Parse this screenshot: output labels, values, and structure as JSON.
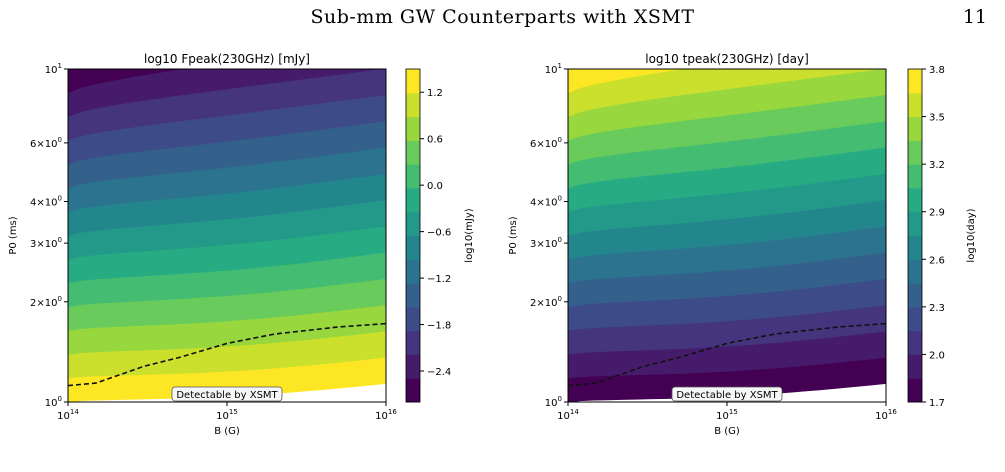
{
  "header": {
    "title": "Sub-mm GW Counterparts with XSMT",
    "page_number": "11"
  },
  "chart_data": [
    {
      "type": "heatmap",
      "title": "log10 Fpeak(230GHz) [mJy]",
      "xlabel": "B (G)",
      "ylabel": "P0 (ms)",
      "x_scale": "log",
      "y_scale": "log",
      "xlim": [
        100000000000000.0,
        1e+16
      ],
      "ylim": [
        1,
        10
      ],
      "x_ticks": [
        "10^14",
        "10^15",
        "10^16"
      ],
      "y_ticks": [
        "10^0",
        "2×10^0",
        "3×10^0",
        "4×10^0",
        "6×10^0",
        "10^1"
      ],
      "colorbar_label": "log10(mJy)",
      "colorbar_ticks": [
        "1.2",
        "0.6",
        "0.0",
        "−0.6",
        "−1.2",
        "−1.8",
        "−2.4"
      ],
      "colorbar_tick_values": [
        1.2,
        0.6,
        0.0,
        -0.6,
        -1.2,
        -1.8,
        -2.4
      ],
      "colorbar_range": [
        -2.8,
        1.5
      ],
      "colormap": "viridis",
      "trend": "decreasing with P0",
      "threshold_curve": {
        "B": [
          100000000000000.0,
          150000000000000.0,
          300000000000000.0,
          500000000000000.0,
          1000000000000000.0,
          2000000000000000.0,
          5000000000000000.0,
          1e+16
        ],
        "P0": [
          1.12,
          1.14,
          1.28,
          1.36,
          1.5,
          1.6,
          1.68,
          1.72
        ]
      },
      "annotation": "Detectable by XSMT"
    },
    {
      "type": "heatmap",
      "title": "log10 tpeak(230GHz) [day]",
      "xlabel": "B (G)",
      "ylabel": "P0 (ms)",
      "x_scale": "log",
      "y_scale": "log",
      "xlim": [
        100000000000000.0,
        1e+16
      ],
      "ylim": [
        1,
        10
      ],
      "x_ticks": [
        "10^14",
        "10^15",
        "10^16"
      ],
      "y_ticks": [
        "10^0",
        "2×10^0",
        "3×10^0",
        "4×10^0",
        "6×10^0",
        "10^1"
      ],
      "colorbar_label": "log10(day)",
      "colorbar_ticks": [
        "3.8",
        "3.5",
        "3.2",
        "2.9",
        "2.6",
        "2.3",
        "2.0",
        "1.7"
      ],
      "colorbar_tick_values": [
        3.8,
        3.5,
        3.2,
        2.9,
        2.6,
        2.3,
        2.0,
        1.7
      ],
      "colorbar_range": [
        1.7,
        3.8
      ],
      "colormap": "viridis",
      "trend": "increasing with P0",
      "threshold_curve": {
        "B": [
          100000000000000.0,
          150000000000000.0,
          300000000000000.0,
          500000000000000.0,
          1000000000000000.0,
          2000000000000000.0,
          5000000000000000.0,
          1e+16
        ],
        "P0": [
          1.12,
          1.14,
          1.28,
          1.36,
          1.5,
          1.6,
          1.68,
          1.72
        ]
      },
      "annotation": "Detectable by XSMT"
    }
  ]
}
